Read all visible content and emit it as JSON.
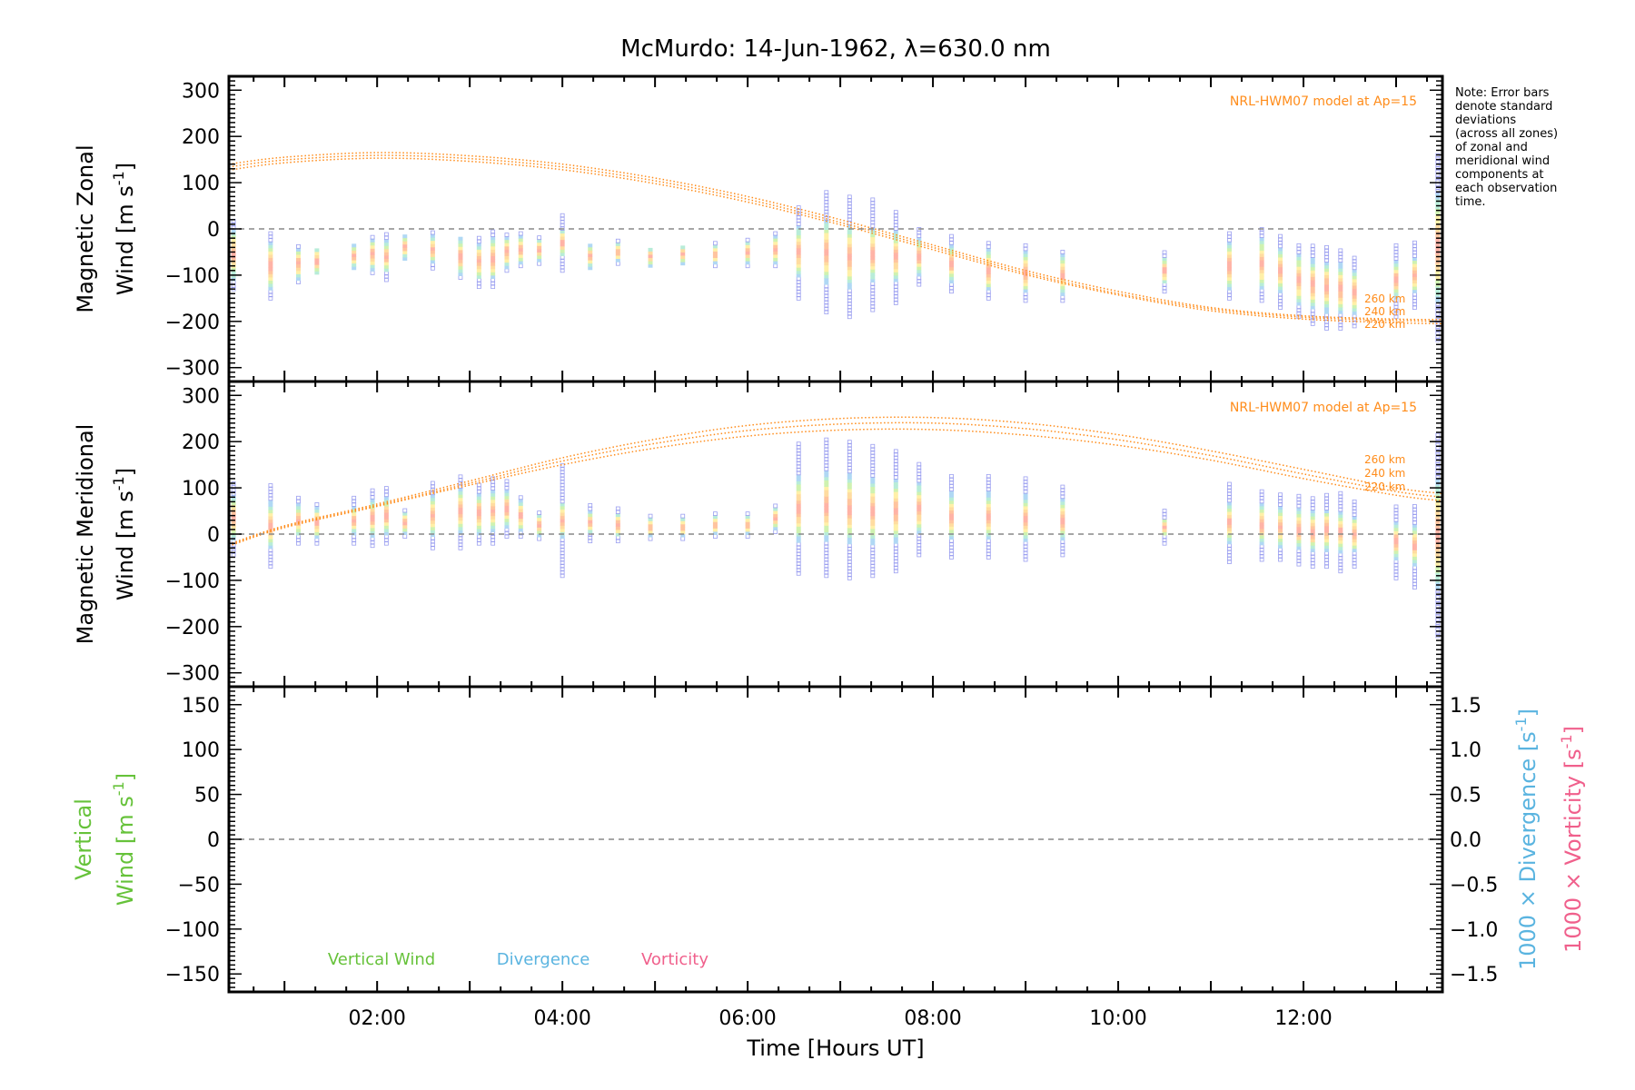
{
  "figure": {
    "title": "McMurdo: 14-Jun-1962, λ=630.0 nm",
    "note": [
      "Note: Error bars",
      "denote standard",
      "deviations",
      "(across all zones)",
      "of zonal and",
      "meridional wind",
      "components at",
      "each observation",
      "time."
    ],
    "xlabel": "Time [Hours UT]",
    "xticks": [
      "02:00",
      "04:00",
      "06:00",
      "08:00",
      "10:00",
      "12:00"
    ]
  },
  "colors": {
    "model": "#ff8c1a",
    "vertical": "#66c23a",
    "divergence": "#5ab4e0",
    "vorticity": "#f0608c",
    "zero_line": "#888888",
    "scatter_outer": "#9b9ff0"
  },
  "chart_data": [
    {
      "type": "scatter",
      "panel": "zonal",
      "ylabel": [
        "Magnetic Zonal",
        "Wind [m s",
        "-1",
        "]"
      ],
      "xlim": [
        0.4,
        13.5
      ],
      "ylim": [
        -330,
        330
      ],
      "yticks": [
        "300",
        "200",
        "100",
        "0",
        "−100",
        "−200",
        "−300"
      ],
      "model_label": "NRL-HWM07 model at Ap=15",
      "altitude_labels": [
        "260 km",
        "240 km",
        "220 km"
      ],
      "model_series": [
        {
          "name": "260 km",
          "x": [
            0.4,
            1,
            2,
            3,
            4,
            5,
            6,
            7,
            8,
            9,
            10,
            11,
            12,
            13,
            13.5
          ],
          "y": [
            140,
            155,
            165,
            158,
            140,
            110,
            70,
            20,
            -35,
            -90,
            -135,
            -170,
            -188,
            -195,
            -196
          ]
        },
        {
          "name": "240 km",
          "x": [
            0.4,
            1,
            2,
            3,
            4,
            5,
            6,
            7,
            8,
            9,
            10,
            11,
            12,
            13,
            13.5
          ],
          "y": [
            134,
            149,
            159,
            152,
            134,
            104,
            64,
            14,
            -40,
            -95,
            -140,
            -173,
            -191,
            -198,
            -200
          ]
        },
        {
          "name": "220 km",
          "x": [
            0.4,
            1,
            2,
            3,
            4,
            5,
            6,
            7,
            8,
            9,
            10,
            11,
            12,
            13,
            13.5
          ],
          "y": [
            127,
            143,
            153,
            146,
            128,
            98,
            58,
            9,
            -45,
            -99,
            -143,
            -177,
            -195,
            -203,
            -205
          ]
        }
      ],
      "observations": [
        {
          "t": 0.45,
          "mean": -55,
          "spread": 55,
          "err": 75
        },
        {
          "t": 0.85,
          "mean": -80,
          "spread": 50,
          "err": 70
        },
        {
          "t": 1.15,
          "mean": -75,
          "spread": 35,
          "err": 40
        },
        {
          "t": 1.35,
          "mean": -70,
          "spread": 30,
          "err": 25
        },
        {
          "t": 1.75,
          "mean": -60,
          "spread": 25,
          "err": 25
        },
        {
          "t": 1.95,
          "mean": -55,
          "spread": 35,
          "err": 40
        },
        {
          "t": 2.1,
          "mean": -60,
          "spread": 35,
          "err": 50
        },
        {
          "t": 2.3,
          "mean": -40,
          "spread": 25,
          "err": 25
        },
        {
          "t": 2.6,
          "mean": -45,
          "spread": 30,
          "err": 40
        },
        {
          "t": 2.9,
          "mean": -60,
          "spread": 40,
          "err": 45
        },
        {
          "t": 3.1,
          "mean": -70,
          "spread": 40,
          "err": 55
        },
        {
          "t": 3.25,
          "mean": -65,
          "spread": 45,
          "err": 60
        },
        {
          "t": 3.4,
          "mean": -50,
          "spread": 35,
          "err": 40
        },
        {
          "t": 3.55,
          "mean": -45,
          "spread": 30,
          "err": 35
        },
        {
          "t": 3.75,
          "mean": -45,
          "spread": 25,
          "err": 30
        },
        {
          "t": 4.0,
          "mean": -30,
          "spread": 30,
          "err": 60
        },
        {
          "t": 4.3,
          "mean": -60,
          "spread": 25,
          "err": 25
        },
        {
          "t": 4.6,
          "mean": -50,
          "spread": 20,
          "err": 25
        },
        {
          "t": 4.95,
          "mean": -60,
          "spread": 20,
          "err": 20
        },
        {
          "t": 5.3,
          "mean": -55,
          "spread": 20,
          "err": 20
        },
        {
          "t": 5.65,
          "mean": -55,
          "spread": 20,
          "err": 25
        },
        {
          "t": 6.0,
          "mean": -50,
          "spread": 25,
          "err": 30
        },
        {
          "t": 6.3,
          "mean": -45,
          "spread": 30,
          "err": 35
        },
        {
          "t": 6.55,
          "mean": -50,
          "spread": 55,
          "err": 100
        },
        {
          "t": 6.85,
          "mean": -50,
          "spread": 70,
          "err": 130
        },
        {
          "t": 7.1,
          "mean": -60,
          "spread": 70,
          "err": 130
        },
        {
          "t": 7.35,
          "mean": -55,
          "spread": 60,
          "err": 120
        },
        {
          "t": 7.6,
          "mean": -60,
          "spread": 55,
          "err": 100
        },
        {
          "t": 7.85,
          "mean": -60,
          "spread": 40,
          "err": 60
        },
        {
          "t": 8.2,
          "mean": -75,
          "spread": 40,
          "err": 60
        },
        {
          "t": 8.6,
          "mean": -90,
          "spread": 45,
          "err": 60
        },
        {
          "t": 9.0,
          "mean": -95,
          "spread": 45,
          "err": 60
        },
        {
          "t": 9.4,
          "mean": -100,
          "spread": 45,
          "err": 55
        },
        {
          "t": 10.5,
          "mean": -90,
          "spread": 30,
          "err": 45
        },
        {
          "t": 11.2,
          "mean": -80,
          "spread": 50,
          "err": 70
        },
        {
          "t": 11.55,
          "mean": -75,
          "spread": 55,
          "err": 80
        },
        {
          "t": 11.75,
          "mean": -90,
          "spread": 50,
          "err": 80
        },
        {
          "t": 11.95,
          "mean": -110,
          "spread": 55,
          "err": 80
        },
        {
          "t": 12.1,
          "mean": -120,
          "spread": 55,
          "err": 85
        },
        {
          "t": 12.25,
          "mean": -125,
          "spread": 55,
          "err": 90
        },
        {
          "t": 12.4,
          "mean": -130,
          "spread": 55,
          "err": 85
        },
        {
          "t": 12.55,
          "mean": -135,
          "spread": 50,
          "err": 75
        },
        {
          "t": 13.0,
          "mean": -110,
          "spread": 40,
          "err": 80
        },
        {
          "t": 13.2,
          "mean": -100,
          "spread": 40,
          "err": 70
        },
        {
          "t": 13.45,
          "mean": -40,
          "spread": 120,
          "err": 200
        }
      ]
    },
    {
      "type": "scatter",
      "panel": "meridional",
      "ylabel": [
        "Magnetic Meridional",
        "Wind [m s",
        "-1",
        "]"
      ],
      "xlim": [
        0.4,
        13.5
      ],
      "ylim": [
        -330,
        330
      ],
      "yticks": [
        "300",
        "200",
        "100",
        "0",
        "−100",
        "−200",
        "−300"
      ],
      "model_label": "NRL-HWM07 model at Ap=15",
      "altitude_labels": [
        "260 km",
        "240 km",
        "220 km"
      ],
      "model_series": [
        {
          "name": "260 km",
          "x": [
            0.4,
            1,
            2,
            3,
            4,
            5,
            6,
            7,
            8,
            9,
            10,
            11,
            12,
            13,
            13.5
          ],
          "y": [
            -22,
            18,
            65,
            115,
            165,
            205,
            235,
            250,
            252,
            240,
            215,
            180,
            140,
            100,
            88
          ]
        },
        {
          "name": "240 km",
          "x": [
            0.4,
            1,
            2,
            3,
            4,
            5,
            6,
            7,
            8,
            9,
            10,
            11,
            12,
            13,
            13.5
          ],
          "y": [
            -24,
            16,
            62,
            110,
            158,
            196,
            224,
            238,
            240,
            228,
            204,
            170,
            130,
            92,
            80
          ]
        },
        {
          "name": "220 km",
          "x": [
            0.4,
            1,
            2,
            3,
            4,
            5,
            6,
            7,
            8,
            9,
            10,
            11,
            12,
            13,
            13.5
          ],
          "y": [
            -26,
            14,
            60,
            106,
            150,
            186,
            212,
            225,
            226,
            214,
            192,
            160,
            120,
            84,
            72
          ]
        }
      ],
      "observations": [
        {
          "t": 0.45,
          "mean": 35,
          "spread": 50,
          "err": 80
        },
        {
          "t": 0.85,
          "mean": 20,
          "spread": 50,
          "err": 90
        },
        {
          "t": 1.15,
          "mean": 30,
          "spread": 35,
          "err": 50
        },
        {
          "t": 1.35,
          "mean": 25,
          "spread": 35,
          "err": 45
        },
        {
          "t": 1.75,
          "mean": 30,
          "spread": 30,
          "err": 50
        },
        {
          "t": 1.95,
          "mean": 35,
          "spread": 40,
          "err": 60
        },
        {
          "t": 2.1,
          "mean": 40,
          "spread": 40,
          "err": 60
        },
        {
          "t": 2.3,
          "mean": 25,
          "spread": 25,
          "err": 30
        },
        {
          "t": 2.6,
          "mean": 40,
          "spread": 45,
          "err": 70
        },
        {
          "t": 2.9,
          "mean": 50,
          "spread": 50,
          "err": 80
        },
        {
          "t": 3.1,
          "mean": 45,
          "spread": 45,
          "err": 65
        },
        {
          "t": 3.25,
          "mean": 50,
          "spread": 45,
          "err": 70
        },
        {
          "t": 3.4,
          "mean": 55,
          "spread": 40,
          "err": 60
        },
        {
          "t": 3.55,
          "mean": 40,
          "spread": 35,
          "err": 45
        },
        {
          "t": 3.75,
          "mean": 20,
          "spread": 25,
          "err": 30
        },
        {
          "t": 4.0,
          "mean": 30,
          "spread": 40,
          "err": 120
        },
        {
          "t": 4.3,
          "mean": 25,
          "spread": 25,
          "err": 40
        },
        {
          "t": 4.6,
          "mean": 20,
          "spread": 25,
          "err": 35
        },
        {
          "t": 4.95,
          "mean": 15,
          "spread": 20,
          "err": 25
        },
        {
          "t": 5.3,
          "mean": 15,
          "spread": 20,
          "err": 25
        },
        {
          "t": 5.65,
          "mean": 20,
          "spread": 20,
          "err": 25
        },
        {
          "t": 6.0,
          "mean": 20,
          "spread": 20,
          "err": 25
        },
        {
          "t": 6.3,
          "mean": 35,
          "spread": 25,
          "err": 30
        },
        {
          "t": 6.55,
          "mean": 55,
          "spread": 70,
          "err": 140
        },
        {
          "t": 6.85,
          "mean": 60,
          "spread": 75,
          "err": 150
        },
        {
          "t": 7.1,
          "mean": 55,
          "spread": 75,
          "err": 150
        },
        {
          "t": 7.35,
          "mean": 50,
          "spread": 70,
          "err": 140
        },
        {
          "t": 7.6,
          "mean": 50,
          "spread": 70,
          "err": 130
        },
        {
          "t": 7.85,
          "mean": 55,
          "spread": 55,
          "err": 100
        },
        {
          "t": 8.2,
          "mean": 40,
          "spread": 50,
          "err": 90
        },
        {
          "t": 8.6,
          "mean": 40,
          "spread": 50,
          "err": 90
        },
        {
          "t": 9.0,
          "mean": 35,
          "spread": 50,
          "err": 90
        },
        {
          "t": 9.4,
          "mean": 30,
          "spread": 45,
          "err": 75
        },
        {
          "t": 10.5,
          "mean": 15,
          "spread": 20,
          "err": 35
        },
        {
          "t": 11.2,
          "mean": 25,
          "spread": 45,
          "err": 85
        },
        {
          "t": 11.55,
          "mean": 20,
          "spread": 45,
          "err": 75
        },
        {
          "t": 11.75,
          "mean": 15,
          "spread": 45,
          "err": 70
        },
        {
          "t": 11.95,
          "mean": 10,
          "spread": 45,
          "err": 75
        },
        {
          "t": 12.1,
          "mean": 5,
          "spread": 45,
          "err": 75
        },
        {
          "t": 12.25,
          "mean": 10,
          "spread": 45,
          "err": 80
        },
        {
          "t": 12.4,
          "mean": 5,
          "spread": 45,
          "err": 85
        },
        {
          "t": 12.55,
          "mean": 0,
          "spread": 40,
          "err": 70
        },
        {
          "t": 13.0,
          "mean": -15,
          "spread": 40,
          "err": 80
        },
        {
          "t": 13.2,
          "mean": -25,
          "spread": 45,
          "err": 90
        },
        {
          "t": 13.45,
          "mean": 0,
          "spread": 120,
          "err": 220
        }
      ]
    },
    {
      "type": "line",
      "panel": "vertical",
      "ylabel": [
        "Vertical",
        "Wind [m s",
        "-1",
        "]"
      ],
      "ylabel_right_div": [
        "1000 × Divergence [s",
        "-1",
        "]"
      ],
      "ylabel_right_vort": [
        "1000 × Vorticity [s",
        "-1",
        "]"
      ],
      "xlim": [
        0.4,
        13.5
      ],
      "ylim": [
        -170,
        170
      ],
      "yticks": [
        "150",
        "100",
        "50",
        "0",
        "−50",
        "−100",
        "−150"
      ],
      "ylim_right": [
        -1.7,
        1.7
      ],
      "yticks_right": [
        "1.5",
        "1.0",
        "0.5",
        "0.0",
        "−0.5",
        "−1.0",
        "−1.5"
      ],
      "legend": [
        "Vertical Wind",
        "Divergence",
        "Vorticity"
      ],
      "series": []
    }
  ]
}
